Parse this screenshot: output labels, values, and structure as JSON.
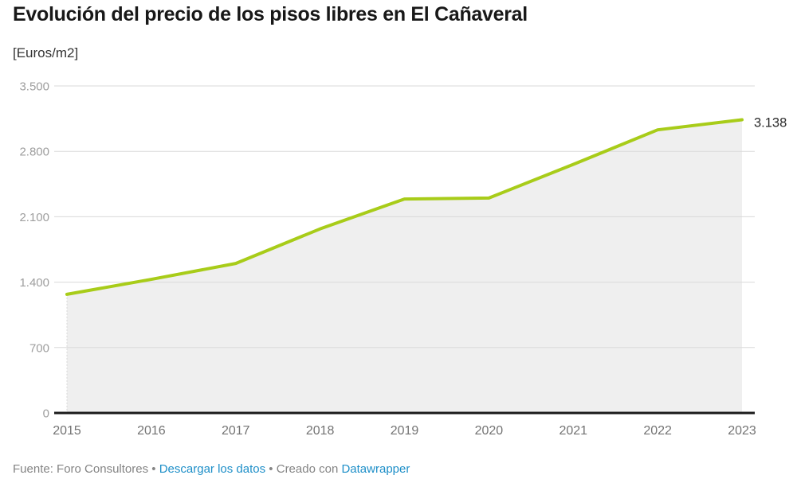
{
  "header": {
    "title": "Evolución del precio de los pisos libres en El Cañaveral",
    "subtitle": "[Euros/m2]"
  },
  "chart_data": {
    "type": "area",
    "title": "Evolución del precio de los pisos libres en El Cañaveral",
    "ylabel": "[Euros/m2]",
    "categories": [
      "2015",
      "2016",
      "2017",
      "2018",
      "2019",
      "2020",
      "2021",
      "2022",
      "2023"
    ],
    "values": [
      1270,
      1430,
      1600,
      1970,
      2290,
      2300,
      2660,
      3030,
      3138
    ],
    "end_label": "3.138",
    "ylim": [
      0,
      3500
    ],
    "yticks": [
      {
        "value": 0,
        "label": "0"
      },
      {
        "value": 700,
        "label": "700"
      },
      {
        "value": 1400,
        "label": "1.400"
      },
      {
        "value": 2100,
        "label": "2.100"
      },
      {
        "value": 2800,
        "label": "2.800"
      },
      {
        "value": 3500,
        "label": "3.500"
      }
    ],
    "grid": true,
    "legend_position": "none"
  },
  "colors": {
    "line": "#a8cc19",
    "area_fill": "#efefef",
    "gridline": "#dadada",
    "axis_line": "#1a1a1a",
    "y_tick_label": "#9e9e9e",
    "x_tick_label": "#737373",
    "end_label": "#2b2b2b",
    "link": "#1e8fc8",
    "footer_text": "#848484"
  },
  "footer": {
    "source_label": "Fuente:",
    "source": "Foro Consultores",
    "separator": "•",
    "download_link": "Descargar los datos",
    "attribution": "Creado con",
    "tool": "Datawrapper"
  }
}
